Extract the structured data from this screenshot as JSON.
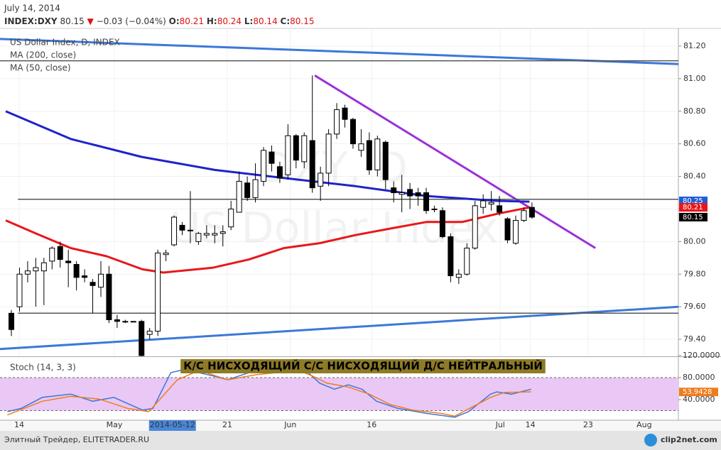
{
  "header": {
    "date": "July 14, 2014",
    "symbol": "INDEX:DXY",
    "last": "80.15",
    "direction": "▼",
    "change": "−0.03 (−0.04%)",
    "ohlc": [
      {
        "label": "O:",
        "value": "80.21"
      },
      {
        "label": "H:",
        "value": "80.24"
      },
      {
        "label": "L:",
        "value": "80.14"
      },
      {
        "label": "C:",
        "value": "80.15"
      }
    ]
  },
  "chart_data": [
    {
      "type": "candlestick",
      "title": "US Dollar Index, D, INDEX",
      "watermark": [
        "DXY, D",
        "US Dollar Index"
      ],
      "banner": "К/С НИСХОДЯЩИЙ С/С НИСХОДЯЩИЙ Д/С НЕЙТРАЛЬНЫЙ",
      "open": [
        79.56,
        79.6,
        79.8,
        79.82,
        79.82,
        79.88,
        79.97,
        79.88,
        79.86,
        79.79,
        79.75,
        79.72,
        79.8,
        79.52,
        79.51,
        79.51,
        79.51,
        79.43,
        79.45,
        79.92,
        79.98,
        80.1,
        80.07,
        80.0,
        80.04,
        80.04,
        80.05,
        80.09,
        80.18,
        80.36,
        80.27,
        80.37,
        80.55,
        80.46,
        80.41,
        80.65,
        80.49,
        80.62,
        80.34,
        80.42,
        80.66,
        80.82,
        80.75,
        80.56,
        80.62,
        80.44,
        80.61,
        80.33,
        80.29,
        80.32,
        80.3,
        80.3,
        80.2,
        80.19,
        80.03,
        79.78,
        79.8,
        79.96,
        80.21,
        80.23,
        80.22,
        80.14,
        79.99,
        80.13,
        80.21
      ],
      "high": [
        79.58,
        79.84,
        79.88,
        79.9,
        79.9,
        79.97,
        80.0,
        79.95,
        79.88,
        79.83,
        79.77,
        79.88,
        79.85,
        79.55,
        79.52,
        79.51,
        79.52,
        79.47,
        79.95,
        79.95,
        80.16,
        80.12,
        80.31,
        80.06,
        80.1,
        80.1,
        80.1,
        80.25,
        80.43,
        80.4,
        80.48,
        80.58,
        80.59,
        80.49,
        80.72,
        80.66,
        80.67,
        81.02,
        80.46,
        80.69,
        80.85,
        80.84,
        80.76,
        80.69,
        80.67,
        80.65,
        80.62,
        80.37,
        80.41,
        80.36,
        80.33,
        80.33,
        80.22,
        80.21,
        80.05,
        79.83,
        79.99,
        80.25,
        80.29,
        80.31,
        80.28,
        80.15,
        80.16,
        80.21,
        80.24
      ],
      "low": [
        79.42,
        79.57,
        79.75,
        79.6,
        79.61,
        79.83,
        79.84,
        79.72,
        79.7,
        79.75,
        79.56,
        79.66,
        79.5,
        79.47,
        79.5,
        79.51,
        79.29,
        79.4,
        79.42,
        79.88,
        79.97,
        80.04,
        79.99,
        79.98,
        80.02,
        79.99,
        79.97,
        80.07,
        80.18,
        80.25,
        80.24,
        80.34,
        80.43,
        80.36,
        80.38,
        80.45,
        80.45,
        80.3,
        80.25,
        80.34,
        80.63,
        80.7,
        80.57,
        80.52,
        80.41,
        80.4,
        80.32,
        80.24,
        80.18,
        80.2,
        80.22,
        80.17,
        80.18,
        80.02,
        79.75,
        79.74,
        79.79,
        79.95,
        80.17,
        80.19,
        80.16,
        79.99,
        79.98,
        80.12,
        80.14
      ],
      "close": [
        79.46,
        79.8,
        79.82,
        79.84,
        79.87,
        79.96,
        79.89,
        79.87,
        79.78,
        79.78,
        79.73,
        79.8,
        79.52,
        79.51,
        79.51,
        79.51,
        79.3,
        79.45,
        79.93,
        79.93,
        80.15,
        80.07,
        80.07,
        80.05,
        80.05,
        80.05,
        80.06,
        80.2,
        80.37,
        80.27,
        80.38,
        80.56,
        80.48,
        80.39,
        80.65,
        80.5,
        80.65,
        80.33,
        80.42,
        80.66,
        80.81,
        80.75,
        80.6,
        80.6,
        80.44,
        80.63,
        80.38,
        80.3,
        80.3,
        80.28,
        80.28,
        80.19,
        80.2,
        80.03,
        79.79,
        79.8,
        79.96,
        80.22,
        80.25,
        80.24,
        80.18,
        80.01,
        80.13,
        80.19,
        80.15
      ],
      "up_color": "#ffffff",
      "down_color": "#000000",
      "series": [
        {
          "name": "MA (200, close)",
          "color": "#1f23c8",
          "x": [
            -0.7,
            7.3,
            16,
            25,
            33.5,
            42.3,
            51,
            59.7,
            63.7
          ],
          "values": [
            80.8,
            80.63,
            80.52,
            80.44,
            80.39,
            80.34,
            80.28,
            80.25,
            80.245
          ]
        },
        {
          "name": "MA (50, close)",
          "color": "#e8171b",
          "x": [
            -0.7,
            3,
            7.3,
            11.7,
            16.1,
            18.7,
            24.8,
            29.2,
            33.5,
            37.9,
            42.3,
            46.6,
            51,
            55.4,
            59.7,
            63.7
          ],
          "values": [
            80.13,
            80.05,
            79.96,
            79.91,
            79.83,
            79.81,
            79.84,
            79.89,
            79.96,
            79.99,
            80.04,
            80.08,
            80.12,
            80.12,
            80.17,
            80.21
          ]
        }
      ],
      "lines": [
        {
          "color": "#3c78d8",
          "x": [
            -1.4,
            82
          ],
          "values": [
            81.244,
            81.09
          ]
        },
        {
          "color": "#3c78d8",
          "x": [
            -1.4,
            82
          ],
          "values": [
            79.34,
            79.6
          ]
        },
        {
          "color": "#9b30d9",
          "x": [
            37.3,
            71.8
          ],
          "values": [
            81.02,
            79.96
          ]
        },
        {
          "color": "#555555",
          "x": [
            -1.4,
            82
          ],
          "values": [
            81.11,
            81.11
          ]
        },
        {
          "color": "#555555",
          "x": [
            0.8,
            82
          ],
          "values": [
            80.26,
            80.26
          ]
        },
        {
          "color": "#555555",
          "x": [
            0.8,
            82
          ],
          "values": [
            79.56,
            79.56
          ]
        }
      ],
      "price_labels": [
        80.25,
        80.21,
        80.15
      ],
      "price_label_colors": [
        "#1f5fd6",
        "#e8171b",
        "#000000"
      ],
      "xlim": [
        -1.4,
        82
      ],
      "ylim": [
        79.3,
        81.3
      ],
      "yticks": [
        {
          "value": 79.4,
          "label": "79.40"
        },
        {
          "value": 79.6,
          "label": "79.60"
        },
        {
          "value": 79.8,
          "label": "79.80"
        },
        {
          "value": 80.0,
          "label": "80.00"
        },
        {
          "value": 80.2,
          "label": "80.20"
        },
        {
          "value": 80.4,
          "label": "80.40"
        },
        {
          "value": 80.6,
          "label": "80.60"
        },
        {
          "value": 80.8,
          "label": "80.80"
        },
        {
          "value": 81.0,
          "label": "81.00"
        },
        {
          "value": 81.2,
          "label": "81.20"
        }
      ],
      "xticks": [
        {
          "value": 0.96,
          "label": "14"
        },
        {
          "value": 12.66,
          "label": "May"
        },
        {
          "value": 26.55,
          "label": "21"
        },
        {
          "value": 34.3,
          "label": "Jun"
        },
        {
          "value": 44.3,
          "label": "16"
        },
        {
          "value": 60.1,
          "label": "Jul"
        },
        {
          "value": 63.8,
          "label": "14"
        },
        {
          "value": 70.9,
          "label": "23"
        },
        {
          "value": 77.8,
          "label": "Aug"
        }
      ],
      "crosshair": {
        "value": 19.8,
        "label": "2014-05-12"
      },
      "grid": true
    },
    {
      "type": "line",
      "title": "Stoch (14, 3, 3)",
      "series": [
        {
          "color": "#3c78d8",
          "x": [
            -0.5,
            1.2,
            3.8,
            7.3,
            10,
            12.6,
            16.1,
            17.4,
            19.6,
            21.3,
            24.8,
            26.6,
            30,
            33.5,
            36.2,
            37.9,
            39.7,
            41.4,
            43.1,
            44.9,
            47.5,
            51,
            54.5,
            56.2,
            58.9,
            59.7,
            61.5,
            63.9
          ],
          "values": [
            18,
            24,
            44,
            50,
            37,
            44,
            21,
            24,
            89,
            95,
            83,
            76,
            93,
            95,
            93,
            70,
            59,
            67,
            59,
            37,
            24,
            15,
            8,
            18,
            50,
            54,
            50,
            59
          ]
        },
        {
          "color": "#f07c1e",
          "x": [
            -0.5,
            3.8,
            7.3,
            10.8,
            14.3,
            16.9,
            20.4,
            23.1,
            26.6,
            30,
            35.3,
            37,
            38.8,
            41.4,
            44,
            46.6,
            49.3,
            52.8,
            54.5,
            58.9,
            60.6,
            63.9
          ],
          "values": [
            12,
            37,
            46,
            41,
            24,
            18,
            76,
            93,
            76,
            85,
            93,
            83,
            70,
            63,
            50,
            31,
            21,
            15,
            10,
            44,
            53,
            54
          ]
        }
      ],
      "band": [
        20,
        80
      ],
      "band_color": "#e9c8f5",
      "value_tag": 53.9428,
      "value_tag_color": "#f07c1e",
      "ylim": [
        0,
        120
      ],
      "yticks": [
        {
          "value": 40,
          "label": "40.0000"
        },
        {
          "value": 80,
          "label": "80.0000"
        },
        {
          "value": 120,
          "label": "120.0000"
        }
      ]
    }
  ],
  "footer": {
    "source": "Элитный Трейдер, ELITETRADER.RU",
    "logo": "clip2net.com"
  }
}
